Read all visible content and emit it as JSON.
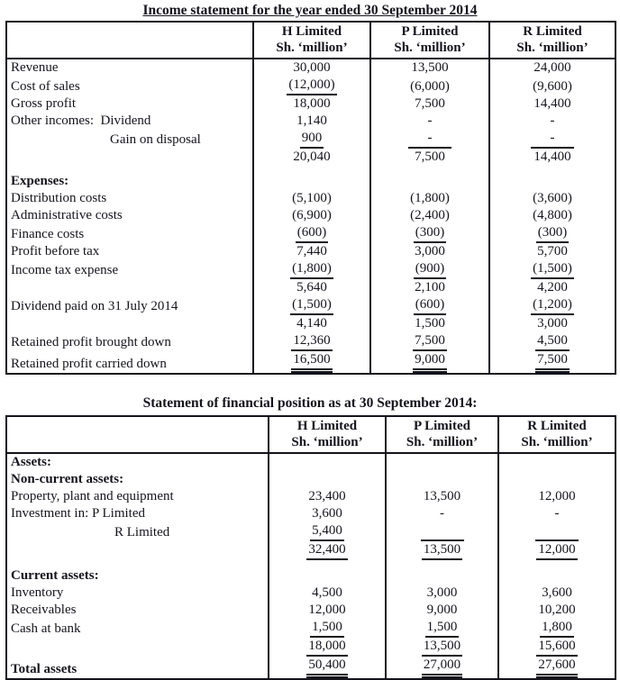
{
  "income_statement": {
    "title": "Income statement for the year ended 30 September 2014",
    "columns": [
      {
        "name": "H Limited",
        "unit": "Sh. ‘million’"
      },
      {
        "name": "P Limited",
        "unit": "Sh. ‘million’"
      },
      {
        "name": "R Limited",
        "unit": "Sh. ‘million’"
      }
    ],
    "rows": [
      {
        "label": "Revenue",
        "values": [
          {
            "t": "30,000"
          },
          {
            "t": "13,500"
          },
          {
            "t": "24,000"
          }
        ]
      },
      {
        "label": "Cost of sales",
        "values": [
          {
            "t": "(12,000)",
            "u": 1
          },
          {
            "t": "(6,000)"
          },
          {
            "t": "(9,600)"
          }
        ]
      },
      {
        "label": "Gross profit",
        "values": [
          {
            "t": "18,000"
          },
          {
            "t": "7,500"
          },
          {
            "t": "14,400"
          }
        ]
      },
      {
        "label": "Other incomes:  Dividend",
        "values": [
          {
            "t": "1,140"
          },
          {
            "t": "-"
          },
          {
            "t": "-"
          }
        ]
      },
      {
        "label": "Gain on disposal",
        "indent": 110,
        "values": [
          {
            "t": "900",
            "u": 1
          },
          {
            "t": "-",
            "u": 1,
            "w": 1
          },
          {
            "t": "-",
            "u": 1,
            "w": 1
          }
        ]
      },
      {
        "label": "",
        "values": [
          {
            "t": "20,040"
          },
          {
            "t": "7,500"
          },
          {
            "t": "14,400"
          }
        ]
      },
      {
        "label": "Expenses:",
        "bold": true,
        "gap": true,
        "values": [
          {},
          {},
          {}
        ]
      },
      {
        "label": "Distribution costs",
        "values": [
          {
            "t": "(5,100)"
          },
          {
            "t": "(1,800)"
          },
          {
            "t": "(3,600)"
          }
        ]
      },
      {
        "label": "Administrative costs",
        "values": [
          {
            "t": "(6,900)"
          },
          {
            "t": "(2,400)"
          },
          {
            "t": "(4,800)"
          }
        ]
      },
      {
        "label": "Finance costs",
        "values": [
          {
            "t": "(600)",
            "u": 1
          },
          {
            "t": "(300)",
            "u": 1
          },
          {
            "t": "(300)",
            "u": 1
          }
        ]
      },
      {
        "label": "Profit before tax",
        "values": [
          {
            "t": "7,440"
          },
          {
            "t": "3,000"
          },
          {
            "t": "5,700"
          }
        ]
      },
      {
        "label": "Income tax expense",
        "values": [
          {
            "t": "(1,800)",
            "u": 1
          },
          {
            "t": "(900)",
            "u": 1
          },
          {
            "t": "(1,500)",
            "u": 1
          }
        ]
      },
      {
        "label": "",
        "values": [
          {
            "t": "5,640"
          },
          {
            "t": "2,100"
          },
          {
            "t": "4,200"
          }
        ]
      },
      {
        "label": "Dividend paid on 31 July 2014",
        "values": [
          {
            "t": "(1,500)",
            "u": 1
          },
          {
            "t": "(600)",
            "u": 1
          },
          {
            "t": "(1,200)",
            "u": 1
          }
        ]
      },
      {
        "label": "",
        "values": [
          {
            "t": "4,140"
          },
          {
            "t": "1,500"
          },
          {
            "t": "3,000"
          }
        ]
      },
      {
        "label": "Retained profit brought down",
        "values": [
          {
            "t": "12,360",
            "u": 1
          },
          {
            "t": "7,500",
            "u": 1
          },
          {
            "t": "4,500",
            "u": 1
          }
        ]
      },
      {
        "label": "Retained profit carried down",
        "values": [
          {
            "t": "16,500",
            "u": 2
          },
          {
            "t": "9,000",
            "u": 2
          },
          {
            "t": "7,500",
            "u": 2
          }
        ]
      }
    ]
  },
  "financial_position": {
    "title": "Statement of financial position as at 30 September 2014:",
    "columns": [
      {
        "name": "H Limited",
        "unit": "Sh. ‘million’"
      },
      {
        "name": "P Limited",
        "unit": "Sh. ‘million’"
      },
      {
        "name": "R Limited",
        "unit": "Sh. ‘million’"
      }
    ],
    "rows": [
      {
        "label": "Assets:",
        "bold": true,
        "values": [
          {},
          {},
          {}
        ]
      },
      {
        "label": "Non-current assets:",
        "bold": true,
        "values": [
          {},
          {},
          {}
        ]
      },
      {
        "label": "Property, plant and equipment",
        "values": [
          {
            "t": "23,400"
          },
          {
            "t": "13,500"
          },
          {
            "t": "12,000"
          }
        ]
      },
      {
        "label": "Investment in: P Limited",
        "values": [
          {
            "t": "3,600"
          },
          {
            "t": "-"
          },
          {
            "t": "-"
          }
        ]
      },
      {
        "label": "R Limited",
        "indent": 115,
        "values": [
          {
            "t": "5,400",
            "u": 1
          },
          {
            "t": "",
            "u": 1,
            "w": 1
          },
          {
            "t": "",
            "u": 1,
            "w": 1
          }
        ]
      },
      {
        "label": "",
        "values": [
          {
            "t": "32,400",
            "u": 1
          },
          {
            "t": "13,500",
            "u": 1
          },
          {
            "t": "12,000",
            "u": 1
          }
        ]
      },
      {
        "label": "Current assets:",
        "bold": true,
        "gap": true,
        "values": [
          {},
          {},
          {}
        ]
      },
      {
        "label": "Inventory",
        "values": [
          {
            "t": "4,500"
          },
          {
            "t": "3,000"
          },
          {
            "t": "3,600"
          }
        ]
      },
      {
        "label": "Receivables",
        "values": [
          {
            "t": "12,000"
          },
          {
            "t": "9,000"
          },
          {
            "t": "10,200"
          }
        ]
      },
      {
        "label": "Cash at bank",
        "values": [
          {
            "t": "1,500",
            "u": 1
          },
          {
            "t": "1,500",
            "u": 1
          },
          {
            "t": "1,800",
            "u": 1
          }
        ]
      },
      {
        "label": "",
        "values": [
          {
            "t": "18,000",
            "u": 1
          },
          {
            "t": "13,500",
            "u": 1
          },
          {
            "t": "15,600",
            "u": 1
          }
        ]
      },
      {
        "label": "Total assets",
        "bold": true,
        "values": [
          {
            "t": "50,400",
            "u": 2
          },
          {
            "t": "27,000",
            "u": 2
          },
          {
            "t": "27,600",
            "u": 2
          }
        ]
      }
    ]
  },
  "colors": {
    "ink": "#14141c",
    "paper": "#ffffff"
  }
}
